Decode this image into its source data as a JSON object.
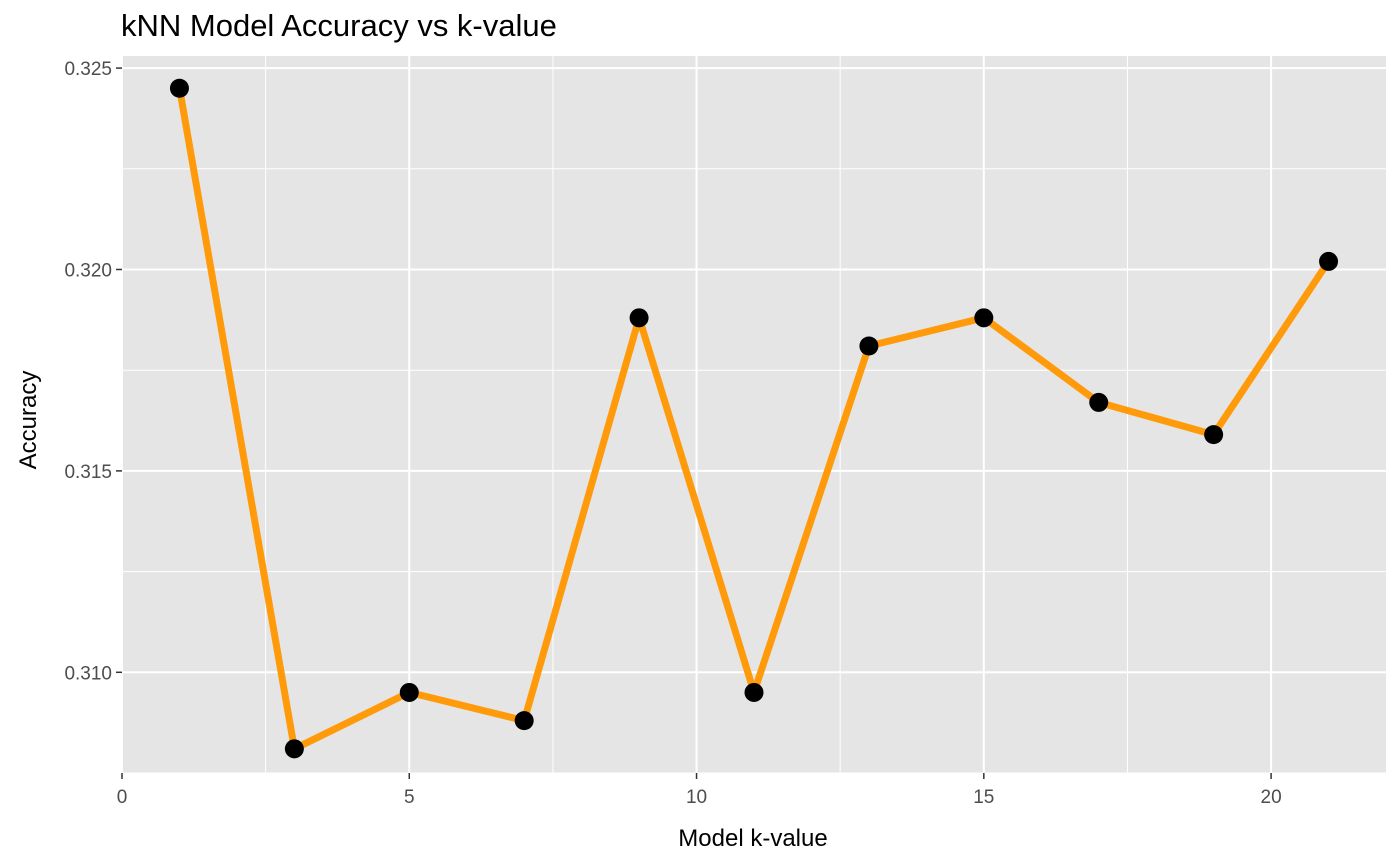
{
  "chart_data": {
    "type": "line",
    "title": "kNN Model Accuracy vs k-value",
    "xlabel": "Model k-value",
    "ylabel": "Accuracy",
    "xlim": [
      0,
      22
    ],
    "ylim": [
      0.3075,
      0.3253
    ],
    "x_ticks": [
      0,
      5,
      10,
      15,
      20
    ],
    "x_tick_labels": [
      "0",
      "5",
      "10",
      "15",
      "20"
    ],
    "y_ticks": [
      0.31,
      0.315,
      0.32,
      0.325
    ],
    "y_tick_labels": [
      "0.310",
      "0.315",
      "0.320",
      "0.325"
    ],
    "grid": true,
    "line_color": "#ff9a0a",
    "point_color": "#000000",
    "panel_color": "#e5e5e5",
    "series": [
      {
        "x": [
          1,
          3,
          5,
          7,
          9,
          11,
          13,
          15,
          17,
          19,
          21
        ],
        "values": [
          0.3245,
          0.3081,
          0.3095,
          0.3088,
          0.3188,
          0.3095,
          0.3181,
          0.3188,
          0.3167,
          0.3159,
          0.3202
        ]
      }
    ]
  }
}
